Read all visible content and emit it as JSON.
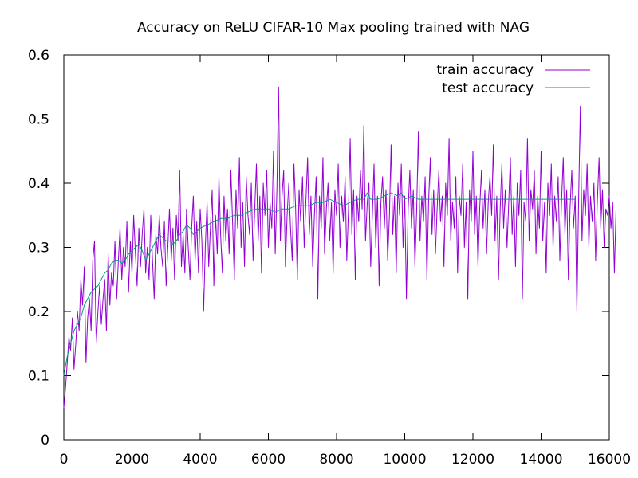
{
  "chart_data": {
    "type": "line",
    "title": "Accuracy on ReLU CIFAR-10 Max pooling trained with NAG",
    "xlabel": "",
    "ylabel": "",
    "xlim": [
      0,
      16000
    ],
    "ylim": [
      0,
      0.6
    ],
    "xticks": [
      0,
      2000,
      4000,
      6000,
      8000,
      10000,
      12000,
      14000,
      16000
    ],
    "xtick_labels": [
      "0",
      "2000",
      "4000",
      "6000",
      "8000",
      "10000",
      "12000",
      "14000",
      "16000"
    ],
    "yticks": [
      0,
      0.1,
      0.2,
      0.3,
      0.4,
      0.5,
      0.6
    ],
    "ytick_labels": [
      "0",
      "0.1",
      "0.2",
      "0.3",
      "0.4",
      "0.5",
      "0.6"
    ],
    "grid": false,
    "legend": "top-right",
    "series": [
      {
        "name": "train accuracy",
        "color": "#9400d3",
        "x_start": 0,
        "x_step": 50,
        "values": [
          0.05,
          0.08,
          0.12,
          0.16,
          0.14,
          0.19,
          0.11,
          0.15,
          0.2,
          0.17,
          0.25,
          0.21,
          0.27,
          0.12,
          0.19,
          0.22,
          0.17,
          0.28,
          0.31,
          0.15,
          0.2,
          0.24,
          0.18,
          0.22,
          0.25,
          0.17,
          0.29,
          0.21,
          0.26,
          0.24,
          0.31,
          0.22,
          0.28,
          0.33,
          0.25,
          0.3,
          0.27,
          0.34,
          0.23,
          0.31,
          0.26,
          0.35,
          0.29,
          0.24,
          0.33,
          0.27,
          0.32,
          0.36,
          0.26,
          0.3,
          0.25,
          0.35,
          0.28,
          0.22,
          0.32,
          0.29,
          0.35,
          0.3,
          0.27,
          0.34,
          0.24,
          0.3,
          0.36,
          0.28,
          0.33,
          0.25,
          0.35,
          0.31,
          0.42,
          0.27,
          0.32,
          0.26,
          0.36,
          0.3,
          0.25,
          0.33,
          0.38,
          0.28,
          0.34,
          0.26,
          0.36,
          0.31,
          0.2,
          0.3,
          0.37,
          0.27,
          0.33,
          0.39,
          0.24,
          0.35,
          0.29,
          0.41,
          0.32,
          0.26,
          0.38,
          0.31,
          0.36,
          0.29,
          0.42,
          0.34,
          0.25,
          0.39,
          0.33,
          0.44,
          0.3,
          0.37,
          0.27,
          0.41,
          0.35,
          0.32,
          0.4,
          0.28,
          0.36,
          0.43,
          0.31,
          0.38,
          0.26,
          0.4,
          0.35,
          0.42,
          0.3,
          0.37,
          0.33,
          0.45,
          0.29,
          0.39,
          0.55,
          0.31,
          0.38,
          0.42,
          0.27,
          0.35,
          0.4,
          0.33,
          0.28,
          0.43,
          0.36,
          0.25,
          0.39,
          0.34,
          0.41,
          0.3,
          0.37,
          0.44,
          0.32,
          0.38,
          0.27,
          0.35,
          0.41,
          0.22,
          0.38,
          0.33,
          0.44,
          0.29,
          0.36,
          0.4,
          0.31,
          0.37,
          0.26,
          0.39,
          0.35,
          0.43,
          0.3,
          0.38,
          0.34,
          0.41,
          0.28,
          0.36,
          0.47,
          0.32,
          0.39,
          0.25,
          0.38,
          0.34,
          0.42,
          0.36,
          0.49,
          0.31,
          0.37,
          0.4,
          0.27,
          0.35,
          0.43,
          0.3,
          0.38,
          0.24,
          0.37,
          0.41,
          0.33,
          0.39,
          0.28,
          0.35,
          0.46,
          0.32,
          0.38,
          0.26,
          0.4,
          0.35,
          0.43,
          0.3,
          0.38,
          0.22,
          0.36,
          0.42,
          0.33,
          0.39,
          0.27,
          0.36,
          0.48,
          0.31,
          0.38,
          0.34,
          0.41,
          0.25,
          0.37,
          0.44,
          0.32,
          0.39,
          0.29,
          0.36,
          0.42,
          0.34,
          0.38,
          0.27,
          0.4,
          0.35,
          0.47,
          0.31,
          0.37,
          0.33,
          0.41,
          0.26,
          0.38,
          0.35,
          0.43,
          0.3,
          0.37,
          0.22,
          0.39,
          0.34,
          0.45,
          0.32,
          0.38,
          0.27,
          0.36,
          0.42,
          0.33,
          0.39,
          0.29,
          0.37,
          0.41,
          0.35,
          0.46,
          0.31,
          0.38,
          0.25,
          0.36,
          0.43,
          0.33,
          0.39,
          0.3,
          0.37,
          0.44,
          0.32,
          0.38,
          0.27,
          0.4,
          0.35,
          0.42,
          0.22,
          0.37,
          0.34,
          0.47,
          0.31,
          0.39,
          0.36,
          0.42,
          0.29,
          0.38,
          0.33,
          0.45,
          0.31,
          0.37,
          0.26,
          0.4,
          0.35,
          0.43,
          0.3,
          0.38,
          0.34,
          0.41,
          0.28,
          0.37,
          0.44,
          0.32,
          0.39,
          0.25,
          0.36,
          0.42,
          0.33,
          0.38,
          0.2,
          0.37,
          0.52,
          0.31,
          0.39,
          0.35,
          0.43,
          0.3,
          0.38,
          0.34,
          0.4,
          0.28,
          0.37,
          0.44,
          0.33,
          0.39,
          0.3,
          0.36,
          0.35,
          0.38,
          0.33,
          0.37,
          0.26,
          0.36
        ]
      },
      {
        "name": "test accuracy",
        "color": "#009e73",
        "x": [
          0,
          100,
          200,
          300,
          400,
          500,
          600,
          700,
          800,
          900,
          1000,
          1100,
          1200,
          1300,
          1400,
          1500,
          1600,
          1700,
          1800,
          1900,
          2000,
          2100,
          2200,
          2300,
          2400,
          2500,
          2600,
          2700,
          2800,
          2900,
          3000,
          3100,
          3200,
          3300,
          3400,
          3500,
          3600,
          3700,
          3800,
          3900,
          4000,
          4200,
          4400,
          4600,
          4800,
          5000,
          5200,
          5400,
          5600,
          5800,
          6000,
          6200,
          6400,
          6600,
          6800,
          7000,
          7200,
          7400,
          7600,
          7800,
          8000,
          8200,
          8400,
          8600,
          8800,
          8900,
          9000,
          9200,
          9400,
          9600,
          9800,
          9900,
          10000,
          10200,
          10400,
          10600,
          10800,
          11000,
          11500,
          12000,
          12500,
          13000,
          13500,
          14000,
          14500,
          15000
        ],
        "values": [
          0.1,
          0.13,
          0.15,
          0.17,
          0.18,
          0.19,
          0.21,
          0.22,
          0.23,
          0.235,
          0.24,
          0.25,
          0.26,
          0.265,
          0.275,
          0.28,
          0.28,
          0.275,
          0.28,
          0.29,
          0.295,
          0.3,
          0.305,
          0.295,
          0.28,
          0.29,
          0.3,
          0.31,
          0.32,
          0.315,
          0.31,
          0.31,
          0.305,
          0.31,
          0.32,
          0.325,
          0.335,
          0.33,
          0.32,
          0.325,
          0.33,
          0.335,
          0.34,
          0.345,
          0.345,
          0.35,
          0.35,
          0.355,
          0.36,
          0.36,
          0.36,
          0.355,
          0.36,
          0.36,
          0.365,
          0.365,
          0.365,
          0.37,
          0.37,
          0.375,
          0.37,
          0.365,
          0.37,
          0.375,
          0.375,
          0.385,
          0.375,
          0.375,
          0.38,
          0.385,
          0.38,
          0.385,
          0.375,
          0.38,
          0.375,
          0.375,
          0.375,
          0.375,
          0.375,
          0.375,
          0.375,
          0.375,
          0.375,
          0.375,
          0.375,
          0.375
        ]
      }
    ]
  }
}
